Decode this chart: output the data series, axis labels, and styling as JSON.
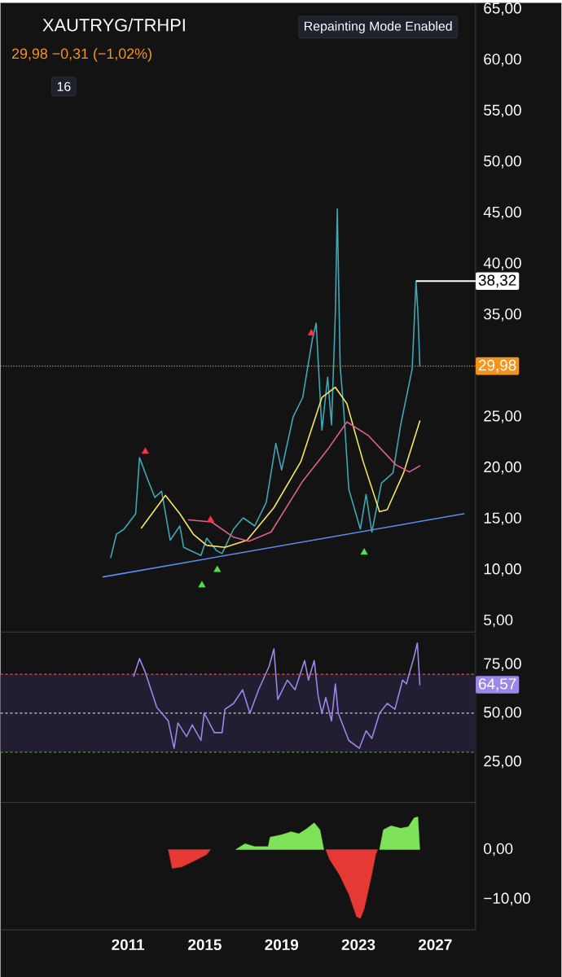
{
  "chart_data": [
    {
      "type": "line",
      "title": "XAUTRYG/TRHPI",
      "subtitle": "29,98 −0,31 (−1,02%)",
      "annotations": [
        "Repainting Mode Enabled",
        "16",
        {
          "text": "38,32",
          "x": 2026.0,
          "y": 38.32
        }
      ],
      "xlim": [
        2004.36,
        2029.1
      ],
      "ylim": [
        3.9,
        65.6
      ],
      "tick_labels": "y",
      "yticks": [
        {
          "value": 5,
          "label": "5,00"
        },
        {
          "value": 10,
          "label": "10,00"
        },
        {
          "value": 15,
          "label": "15,00"
        },
        {
          "value": 20,
          "label": "20,00"
        },
        {
          "value": 25,
          "label": "25,00"
        },
        {
          "value": 30,
          "label": null
        },
        {
          "value": 35,
          "label": "35,00"
        },
        {
          "value": 40,
          "label": "40,00"
        },
        {
          "value": 45,
          "label": "45,00"
        },
        {
          "value": 50,
          "label": "50,00"
        },
        {
          "value": 55,
          "label": "55,00"
        },
        {
          "value": 60,
          "label": "60,00"
        },
        {
          "value": 65,
          "label": "65,00"
        }
      ],
      "ref_lines": [
        {
          "axis": "y",
          "value": 29.98,
          "label": "29,98",
          "color": "#f7931a",
          "line_style": "dotted"
        }
      ],
      "series": [
        {
          "color": "#5b8def",
          "x": [
            2009.7,
            2028.5
          ],
          "values": [
            9.3,
            15.5
          ]
        },
        {
          "color": "#3fa7b5",
          "x": [
            2010.1,
            2010.4,
            2010.8,
            2011.4,
            2011.6,
            2012.0,
            2012.4,
            2012.75,
            2013.2,
            2013.7,
            2013.9,
            2014.8,
            2015.1,
            2015.6,
            2015.9,
            2016.5,
            2017.0,
            2017.6,
            2018.2,
            2018.7,
            2019.0,
            2019.6,
            2020.1,
            2020.6,
            2020.8,
            2021.1,
            2021.4,
            2021.6,
            2021.8,
            2021.9,
            2022.05,
            2022.25,
            2022.5,
            2023.1,
            2023.4,
            2023.7,
            2024.2,
            2024.8,
            2025.2,
            2025.8,
            2026.0,
            2026.1,
            2026.2
          ],
          "values": [
            11.2,
            13.5,
            14.0,
            15.5,
            21.0,
            19.0,
            17.1,
            17.7,
            12.9,
            14.3,
            12.2,
            11.4,
            13.1,
            11.9,
            11.6,
            14.0,
            15.1,
            14.3,
            16.6,
            22.4,
            19.8,
            25.0,
            26.9,
            32.6,
            34.2,
            23.7,
            28.9,
            24.2,
            35.2,
            45.4,
            30.0,
            25.3,
            17.9,
            14.0,
            17.4,
            13.7,
            18.5,
            19.5,
            24.2,
            29.7,
            38.3,
            35.2,
            29.98
          ]
        },
        {
          "color": "#f5e663",
          "x": [
            2011.7,
            2012.95,
            2013.7,
            2014.4,
            2015.1,
            2016.05,
            2017.2,
            2018.6,
            2020.0,
            2021.1,
            2021.8,
            2022.4,
            2023.25,
            2024.1,
            2024.5,
            2025.35,
            2026.2
          ],
          "values": [
            14.1,
            17.3,
            15.5,
            13.5,
            12.4,
            12.2,
            12.9,
            16.1,
            20.6,
            26.9,
            27.9,
            26.3,
            20.6,
            15.7,
            15.9,
            19.5,
            24.6
          ]
        },
        {
          "color": "#e0608f",
          "x": [
            2014.15,
            2015.35,
            2016.5,
            2017.3,
            2018.45,
            2020.1,
            2021.4,
            2022.4,
            2023.5,
            2024.95,
            2025.65,
            2026.2
          ],
          "values": [
            14.9,
            14.7,
            13.2,
            12.8,
            13.7,
            18.7,
            21.8,
            24.5,
            23.2,
            20.3,
            19.6,
            20.2
          ]
        },
        {
          "type": "scatter",
          "marker": "triangle",
          "color": "#f23645",
          "x": [
            2011.9,
            2015.3,
            2020.55
          ],
          "values": [
            21.6,
            14.9,
            33.2
          ]
        },
        {
          "type": "scatter",
          "marker": "triangle",
          "color": "#4ce34c",
          "x": [
            2014.85,
            2015.65,
            2023.3
          ],
          "values": [
            8.5,
            10.0,
            11.7
          ]
        }
      ]
    },
    {
      "type": "line",
      "xlim": [
        2004.36,
        2029.1
      ],
      "ylim": [
        4.2,
        90.8
      ],
      "tick_labels": "y",
      "yticks": [
        {
          "value": 25,
          "label": "25,00"
        },
        {
          "value": 50,
          "label": "50,00"
        },
        {
          "value": 75,
          "label": "75,00"
        }
      ],
      "annotations": [
        "64,57"
      ],
      "bands": [
        {
          "axis": "y",
          "from": 30,
          "to": 70,
          "color": "#221d31"
        }
      ],
      "ref_lines": [
        {
          "axis": "y",
          "value": 70,
          "color": "#e05555",
          "line_style": "dashed"
        },
        {
          "axis": "y",
          "value": 50,
          "color": "#cccccc",
          "line_style": "dashed"
        },
        {
          "axis": "y",
          "value": 30,
          "color": "#4f9a4f",
          "line_style": "dashed"
        }
      ],
      "series": [
        {
          "color": "#9b87e8",
          "x": [
            2011.3,
            2011.6,
            2011.9,
            2012.5,
            2013.1,
            2013.4,
            2013.6,
            2014.05,
            2014.35,
            2014.8,
            2014.97,
            2015.5,
            2015.9,
            2016.05,
            2016.5,
            2016.97,
            2017.35,
            2017.8,
            2018.35,
            2018.6,
            2018.8,
            2019.3,
            2019.7,
            2020.2,
            2020.4,
            2020.7,
            2020.9,
            2021.1,
            2021.3,
            2021.6,
            2021.8,
            2021.95,
            2022.5,
            2023.05,
            2023.4,
            2023.7,
            2024.1,
            2024.5,
            2024.9,
            2025.3,
            2025.5,
            2025.9,
            2026.07,
            2026.2
          ],
          "values": [
            69,
            78,
            71,
            53,
            46,
            32,
            45,
            38,
            44,
            36,
            50,
            40,
            40,
            52,
            55,
            62,
            50,
            62,
            74,
            83,
            57,
            67,
            62,
            77,
            67,
            77,
            59,
            50,
            58,
            46,
            65,
            50,
            36,
            32,
            41,
            37,
            50,
            55,
            52,
            67,
            65,
            79,
            86,
            64.6
          ]
        }
      ]
    },
    {
      "type": "area",
      "xlim": [
        2004.36,
        2029.1
      ],
      "ylim": [
        -16.2,
        9.5
      ],
      "xticks": [
        2011,
        2015,
        2019,
        2023,
        2027
      ],
      "yticks": [
        {
          "value": -10,
          "label": "−10,00"
        },
        {
          "value": 0,
          "label": "0,00"
        }
      ],
      "series": [
        {
          "color": "#7ee35a",
          "x": [
            2016.6,
            2017.1,
            2017.6,
            2018.3,
            2018.4,
            2019.0,
            2019.5,
            2019.9,
            2020.3,
            2020.7,
            2021.0,
            2021.2,
            2022.0,
            2024.1,
            2024.3,
            2024.7,
            2025.2,
            2025.6,
            2025.9,
            2026.1,
            2026.2
          ],
          "values": [
            0,
            1.2,
            0.6,
            0.6,
            2.5,
            3.0,
            3.6,
            3.2,
            4.2,
            5.4,
            4.0,
            0,
            null,
            0,
            4.0,
            4.8,
            4.3,
            4.6,
            6.4,
            6.6,
            0
          ]
        },
        {
          "color": "#e53935",
          "x": [
            2013.1,
            2013.3,
            2013.8,
            2014.4,
            2015.1,
            2015.3,
            2018.0,
            2021.3,
            2021.5,
            2022.0,
            2022.5,
            2022.9,
            2023.1,
            2023.3,
            2023.7,
            2023.9,
            2024.0
          ],
          "values": [
            0,
            -3.8,
            -3.5,
            -2.4,
            -1,
            0,
            null,
            0,
            -2,
            -5,
            -9,
            -13.5,
            -13.9,
            -12,
            -5,
            -1,
            0
          ]
        }
      ]
    }
  ]
}
